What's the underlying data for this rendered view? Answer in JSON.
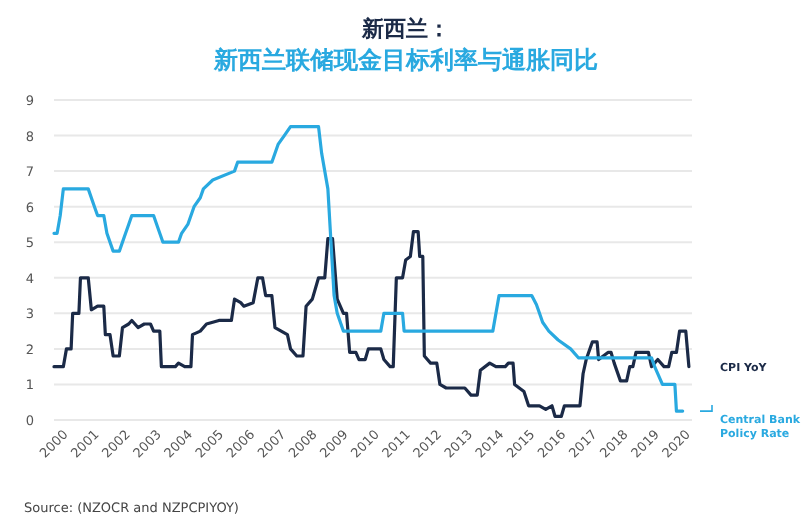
{
  "chart_data": {
    "type": "line",
    "title": "新西兰：",
    "subtitle": "新西兰联储现金目标利率与通胀同比",
    "annotations": [
      "Source: (NZOCR and NZPCPIYOY)"
    ],
    "xlim": [
      2000,
      2020.5
    ],
    "xticks": [
      2000,
      2001,
      2002,
      2003,
      2004,
      2005,
      2006,
      2007,
      2008,
      2009,
      2010,
      2011,
      2012,
      2013,
      2014,
      2015,
      2016,
      2017,
      2018,
      2019,
      2020
    ],
    "ylim": [
      0,
      9
    ],
    "yticks": [
      0,
      1,
      2,
      3,
      4,
      5,
      6,
      7,
      8,
      9
    ],
    "grid": "y",
    "line_style": "solid",
    "series": [
      {
        "name": "CPI YoY",
        "color": "#1b2a47",
        "x": [
          2000.0,
          2000.3,
          2000.4,
          2000.55,
          2000.6,
          2000.8,
          2000.85,
          2001.1,
          2001.2,
          2001.4,
          2001.6,
          2001.65,
          2001.8,
          2001.9,
          2002.1,
          2002.2,
          2002.4,
          2002.5,
          2002.7,
          2002.9,
          2003.1,
          2003.2,
          2003.4,
          2003.45,
          2003.9,
          2004.0,
          2004.2,
          2004.4,
          2004.45,
          2004.7,
          2004.9,
          2005.3,
          2005.7,
          2005.8,
          2006.0,
          2006.1,
          2006.4,
          2006.55,
          2006.7,
          2006.8,
          2007.0,
          2007.1,
          2007.3,
          2007.5,
          2007.6,
          2007.8,
          2008.0,
          2008.1,
          2008.3,
          2008.5,
          2008.7,
          2008.8,
          2008.95,
          2009.1,
          2009.3,
          2009.4,
          2009.5,
          2009.7,
          2009.8,
          2010.0,
          2010.1,
          2010.5,
          2010.6,
          2010.8,
          2010.9,
          2011.0,
          2011.2,
          2011.3,
          2011.45,
          2011.55,
          2011.7,
          2011.75,
          2011.85,
          2011.9,
          2012.1,
          2012.3,
          2012.4,
          2012.6,
          2013.2,
          2013.4,
          2013.6,
          2013.7,
          2014.0,
          2014.2,
          2014.5,
          2014.6,
          2014.75,
          2014.8,
          2015.1,
          2015.25,
          2015.6,
          2015.8,
          2016.0,
          2016.1,
          2016.3,
          2016.4,
          2016.9,
          2017.0,
          2017.1,
          2017.3,
          2017.45,
          2017.5,
          2017.8,
          2017.9,
          2018.0,
          2018.2,
          2018.4,
          2018.5,
          2018.6,
          2018.7,
          2019.1,
          2019.2,
          2019.4,
          2019.6,
          2019.75,
          2019.85,
          2020.0,
          2020.1,
          2020.3,
          2020.4
        ],
        "values": [
          1.5,
          1.5,
          2.0,
          2.0,
          3.0,
          3.0,
          4.0,
          4.0,
          3.1,
          3.2,
          3.2,
          2.4,
          2.4,
          1.8,
          1.8,
          2.6,
          2.7,
          2.8,
          2.6,
          2.7,
          2.7,
          2.5,
          2.5,
          1.5,
          1.5,
          1.6,
          1.5,
          1.5,
          2.4,
          2.5,
          2.7,
          2.8,
          2.8,
          3.4,
          3.3,
          3.2,
          3.3,
          4.0,
          4.0,
          3.5,
          3.5,
          2.6,
          2.5,
          2.4,
          2.0,
          1.8,
          1.8,
          3.2,
          3.4,
          4.0,
          4.0,
          5.1,
          5.1,
          3.4,
          3.0,
          3.0,
          1.9,
          1.9,
          1.7,
          1.7,
          2.0,
          2.0,
          1.7,
          1.5,
          1.5,
          4.0,
          4.0,
          4.5,
          4.6,
          5.3,
          5.3,
          4.6,
          4.6,
          1.8,
          1.6,
          1.6,
          1.0,
          0.9,
          0.9,
          0.7,
          0.7,
          1.4,
          1.6,
          1.5,
          1.5,
          1.6,
          1.6,
          1.0,
          0.8,
          0.4,
          0.4,
          0.3,
          0.4,
          0.1,
          0.1,
          0.4,
          0.4,
          1.3,
          1.7,
          2.2,
          2.2,
          1.7,
          1.9,
          1.9,
          1.6,
          1.1,
          1.1,
          1.5,
          1.5,
          1.9,
          1.9,
          1.5,
          1.7,
          1.5,
          1.5,
          1.9,
          1.9,
          2.5,
          2.5,
          1.5
        ]
      },
      {
        "name": "Central Bank Policy Rate",
        "color": "#29a9e0",
        "x": [
          2000.0,
          2000.1,
          2000.2,
          2000.3,
          2001.1,
          2001.3,
          2001.4,
          2001.6,
          2001.7,
          2001.9,
          2002.1,
          2002.3,
          2002.4,
          2002.5,
          2003.2,
          2003.3,
          2003.5,
          2004.0,
          2004.1,
          2004.3,
          2004.5,
          2004.7,
          2004.8,
          2005.1,
          2005.8,
          2005.9,
          2007.0,
          2007.2,
          2007.4,
          2007.6,
          2008.5,
          2008.6,
          2008.8,
          2008.9,
          2009.0,
          2009.1,
          2009.3,
          2010.5,
          2010.6,
          2011.2,
          2011.25,
          2014.1,
          2014.3,
          2015.35,
          2015.5,
          2015.6,
          2015.7,
          2015.9,
          2016.2,
          2016.6,
          2016.85,
          2019.2,
          2019.3,
          2019.55,
          2019.95,
          2020.0,
          2020.2
        ],
        "values": [
          5.25,
          5.25,
          5.75,
          6.5,
          6.5,
          6.0,
          5.75,
          5.75,
          5.25,
          4.75,
          4.75,
          5.25,
          5.5,
          5.75,
          5.75,
          5.5,
          5.0,
          5.0,
          5.25,
          5.5,
          6.0,
          6.25,
          6.5,
          6.75,
          7.0,
          7.25,
          7.25,
          7.75,
          8.0,
          8.25,
          8.25,
          7.5,
          6.5,
          5.0,
          3.5,
          3.0,
          2.5,
          2.5,
          3.0,
          3.0,
          2.5,
          2.5,
          3.5,
          3.5,
          3.25,
          3.0,
          2.75,
          2.5,
          2.25,
          2.0,
          1.75,
          1.75,
          1.5,
          1.0,
          1.0,
          0.25,
          0.25
        ]
      }
    ]
  }
}
